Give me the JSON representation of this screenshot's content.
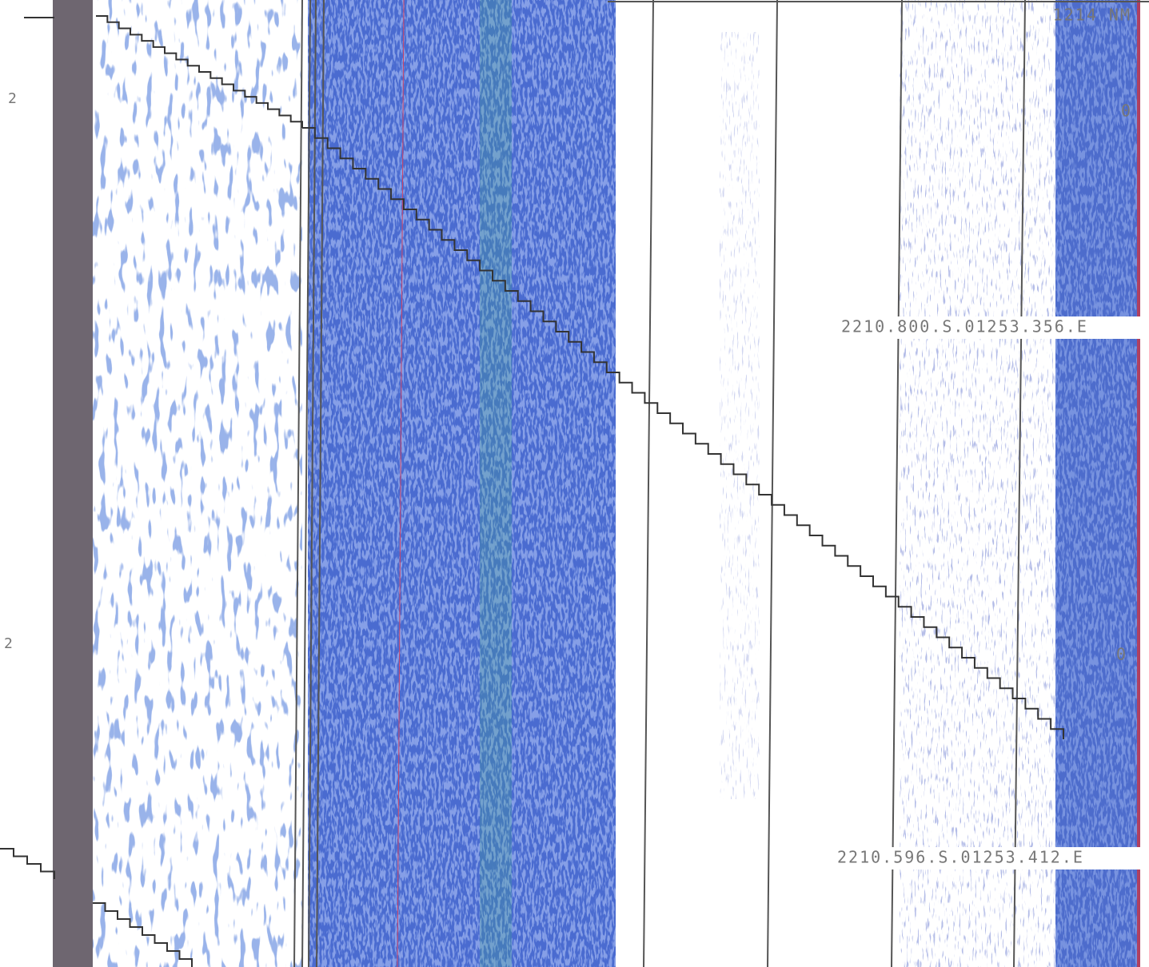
{
  "left_labels": [
    "2",
    "2"
  ],
  "range_label": "1214 NM",
  "right_labels": [
    "0",
    "0"
  ],
  "positions": [
    "2210.800.S.01253.356.E",
    "2210.596.S.01253.412.E"
  ]
}
